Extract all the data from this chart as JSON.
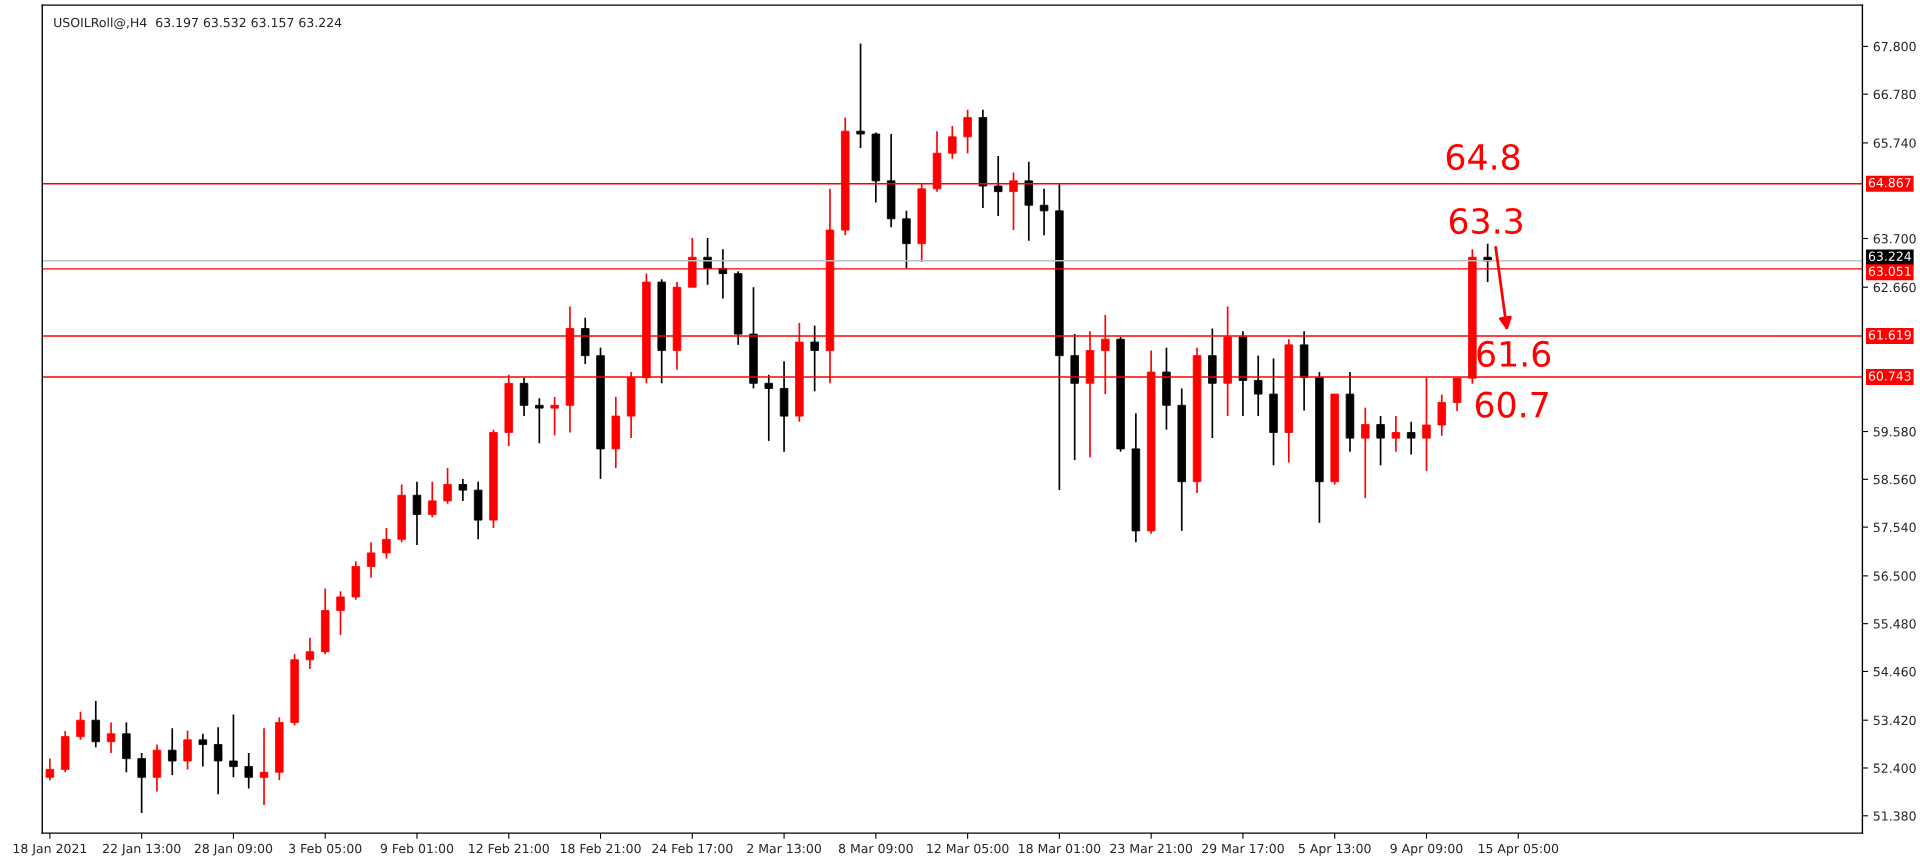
{
  "chart_data": {
    "type": "candlestick",
    "title": "USOILRoll@,H4  63.197 63.532 63.157 63.224",
    "categories": [
      "18 Jan 2021",
      null,
      null,
      null,
      null,
      null,
      "22 Jan 13:00",
      null,
      null,
      null,
      null,
      null,
      "28 Jan 09:00",
      null,
      null,
      null,
      null,
      null,
      "3 Feb 05:00",
      null,
      null,
      null,
      null,
      null,
      "9 Feb 01:00",
      null,
      null,
      null,
      null,
      null,
      "12 Feb 21:00",
      null,
      null,
      null,
      null,
      null,
      "18 Feb 21:00",
      null,
      null,
      null,
      null,
      null,
      "24 Feb 17:00",
      null,
      null,
      null,
      null,
      null,
      "2 Mar 13:00",
      null,
      null,
      null,
      null,
      null,
      "8 Mar 09:00",
      null,
      null,
      null,
      null,
      null,
      "12 Mar 05:00",
      null,
      null,
      null,
      null,
      null,
      "18 Mar 01:00",
      null,
      null,
      null,
      null,
      null,
      "23 Mar 21:00",
      null,
      null,
      null,
      null,
      null,
      "29 Mar 17:00",
      null,
      null,
      null,
      null,
      null,
      "5 Apr 13:00",
      null,
      null,
      null,
      null,
      null,
      "9 Apr 09:00",
      null,
      null,
      null,
      null,
      null,
      "15 Apr 05:00",
      null,
      null,
      null,
      null,
      null,
      null,
      null,
      null,
      null,
      null,
      null,
      null,
      null,
      null,
      null,
      null,
      null,
      null,
      null,
      null,
      null,
      null
    ],
    "ohlc": [
      [
        52.2,
        52.6,
        52.14,
        52.37
      ],
      [
        52.37,
        53.19,
        52.31,
        53.07
      ],
      [
        53.07,
        53.6,
        53.0,
        53.42
      ],
      [
        53.42,
        53.83,
        52.84,
        52.96
      ],
      [
        52.96,
        53.37,
        52.72,
        53.13
      ],
      [
        53.13,
        53.37,
        52.31,
        52.6
      ],
      [
        52.6,
        52.72,
        51.44,
        52.2
      ],
      [
        52.2,
        52.9,
        51.9,
        52.78
      ],
      [
        52.78,
        53.25,
        52.25,
        52.55
      ],
      [
        52.55,
        53.2,
        52.37,
        53.0
      ],
      [
        53.0,
        53.13,
        52.43,
        52.9
      ],
      [
        52.9,
        53.27,
        51.84,
        52.55
      ],
      [
        52.55,
        53.54,
        52.2,
        52.43
      ],
      [
        52.43,
        52.72,
        51.96,
        52.2
      ],
      [
        52.2,
        53.25,
        51.61,
        52.31
      ],
      [
        52.31,
        53.48,
        52.14,
        53.37
      ],
      [
        53.37,
        54.83,
        53.31,
        54.71
      ],
      [
        54.71,
        55.18,
        54.51,
        54.88
      ],
      [
        54.88,
        56.23,
        54.83,
        55.76
      ],
      [
        55.76,
        56.17,
        55.24,
        56.05
      ],
      [
        56.05,
        56.81,
        55.99,
        56.7
      ],
      [
        56.7,
        57.22,
        56.46,
        56.99
      ],
      [
        56.99,
        57.52,
        56.87,
        57.28
      ],
      [
        57.28,
        58.45,
        57.22,
        58.22
      ],
      [
        58.22,
        58.51,
        57.16,
        57.81
      ],
      [
        57.81,
        58.51,
        57.75,
        58.1
      ],
      [
        58.1,
        58.8,
        58.04,
        58.45
      ],
      [
        58.45,
        58.57,
        58.1,
        58.33
      ],
      [
        58.33,
        58.51,
        57.28,
        57.69
      ],
      [
        57.69,
        59.62,
        57.52,
        59.56
      ],
      [
        59.56,
        60.79,
        59.27,
        60.61
      ],
      [
        60.61,
        60.73,
        59.91,
        60.14
      ],
      [
        60.14,
        60.29,
        59.33,
        60.08
      ],
      [
        60.08,
        60.32,
        59.5,
        60.14
      ],
      [
        60.14,
        62.25,
        59.56,
        61.78
      ],
      [
        61.78,
        62.01,
        61.02,
        61.2
      ],
      [
        61.2,
        61.37,
        58.57,
        59.21
      ],
      [
        59.21,
        60.32,
        58.8,
        59.91
      ],
      [
        59.91,
        60.85,
        59.44,
        60.73
      ],
      [
        60.73,
        62.95,
        60.61,
        62.77
      ],
      [
        62.77,
        62.83,
        60.61,
        61.31
      ],
      [
        61.31,
        62.77,
        60.9,
        62.66
      ],
      [
        62.66,
        63.71,
        62.66,
        63.3
      ],
      [
        63.3,
        63.71,
        62.71,
        63.06
      ],
      [
        63.06,
        63.47,
        62.42,
        62.95
      ],
      [
        62.95,
        63.0,
        61.43,
        61.66
      ],
      [
        61.66,
        62.66,
        60.5,
        60.61
      ],
      [
        60.61,
        60.79,
        59.38,
        60.5
      ],
      [
        60.5,
        61.08,
        59.15,
        59.91
      ],
      [
        59.91,
        61.9,
        59.79,
        61.49
      ],
      [
        61.49,
        61.84,
        60.44,
        61.31
      ],
      [
        61.31,
        64.76,
        60.61,
        63.88
      ],
      [
        63.88,
        66.28,
        63.77,
        65.99
      ],
      [
        65.99,
        67.86,
        65.63,
        65.93
      ],
      [
        65.93,
        65.96,
        64.47,
        64.93
      ],
      [
        64.93,
        65.93,
        63.94,
        64.12
      ],
      [
        64.12,
        64.29,
        63.06,
        63.59
      ],
      [
        63.59,
        64.88,
        63.2,
        64.76
      ],
      [
        64.76,
        65.99,
        64.7,
        65.52
      ],
      [
        65.52,
        66.1,
        65.4,
        65.87
      ],
      [
        65.87,
        66.45,
        65.52,
        66.28
      ],
      [
        66.28,
        66.45,
        64.35,
        64.82
      ],
      [
        64.82,
        65.46,
        64.18,
        64.7
      ],
      [
        64.7,
        65.11,
        63.88,
        64.93
      ],
      [
        64.93,
        65.34,
        63.65,
        64.41
      ],
      [
        64.41,
        64.76,
        63.77,
        64.29
      ],
      [
        64.29,
        64.88,
        58.33,
        61.2
      ],
      [
        61.2,
        61.66,
        58.97,
        60.61
      ],
      [
        60.61,
        61.72,
        59.03,
        61.31
      ],
      [
        61.31,
        62.07,
        60.38,
        61.55
      ],
      [
        61.55,
        61.6,
        59.15,
        59.21
      ],
      [
        59.21,
        59.97,
        57.22,
        57.46
      ],
      [
        57.46,
        61.31,
        57.4,
        60.85
      ],
      [
        60.85,
        61.37,
        59.62,
        60.14
      ],
      [
        60.14,
        60.5,
        57.46,
        58.51
      ],
      [
        58.51,
        61.37,
        58.27,
        61.2
      ],
      [
        61.2,
        61.78,
        59.44,
        60.61
      ],
      [
        60.61,
        62.25,
        59.91,
        61.6
      ],
      [
        61.6,
        61.72,
        59.91,
        60.67
      ],
      [
        60.67,
        61.2,
        59.91,
        60.38
      ],
      [
        60.38,
        61.14,
        58.86,
        59.56
      ],
      [
        59.56,
        61.55,
        58.92,
        61.43
      ],
      [
        61.43,
        61.72,
        60.03,
        60.73
      ],
      [
        60.73,
        60.85,
        57.63,
        58.51
      ],
      [
        58.51,
        60.38,
        58.45,
        60.38
      ],
      [
        60.38,
        60.85,
        59.15,
        59.44
      ],
      [
        59.44,
        60.09,
        58.16,
        59.73
      ],
      [
        59.73,
        59.91,
        58.86,
        59.44
      ],
      [
        59.44,
        59.91,
        59.15,
        59.56
      ],
      [
        59.56,
        59.79,
        59.09,
        59.44
      ],
      [
        59.44,
        60.73,
        58.74,
        59.72
      ],
      [
        59.72,
        60.37,
        59.49,
        60.2
      ],
      [
        60.2,
        60.72,
        60.02,
        60.72
      ],
      [
        60.72,
        63.47,
        60.6,
        63.3
      ],
      [
        63.3,
        63.59,
        62.77,
        63.22
      ],
      null,
      null,
      null,
      null,
      null,
      null,
      null,
      null,
      null,
      null,
      null,
      null,
      null,
      null,
      null,
      null,
      null,
      null,
      null,
      null,
      null,
      null,
      null,
      null
    ],
    "colors": [
      "#ff0000",
      "#ff0000",
      "#ff0000",
      "#000000",
      "#ff0000",
      "#000000",
      "#000000",
      "#ff0000",
      "#000000",
      "#ff0000",
      "#000000",
      "#000000",
      "#000000",
      "#000000",
      "#ff0000",
      "#ff0000",
      "#ff0000",
      "#ff0000",
      "#ff0000",
      "#ff0000",
      "#ff0000",
      "#ff0000",
      "#ff0000",
      "#ff0000",
      "#000000",
      "#ff0000",
      "#ff0000",
      "#000000",
      "#000000",
      "#ff0000",
      "#ff0000",
      "#000000",
      "#000000",
      "#ff0000",
      "#ff0000",
      "#000000",
      "#000000",
      "#ff0000",
      "#ff0000",
      "#ff0000",
      "#000000",
      "#ff0000",
      "#ff0000",
      "#000000",
      "#000000",
      "#000000",
      "#000000",
      "#000000",
      "#000000",
      "#ff0000",
      "#000000",
      "#ff0000",
      "#ff0000",
      "#000000",
      "#000000",
      "#000000",
      "#000000",
      "#ff0000",
      "#ff0000",
      "#ff0000",
      "#ff0000",
      "#000000",
      "#000000",
      "#ff0000",
      "#000000",
      "#000000",
      "#000000",
      "#000000",
      "#ff0000",
      "#ff0000",
      "#000000",
      "#000000",
      "#ff0000",
      "#000000",
      "#000000",
      "#ff0000",
      "#000000",
      "#ff0000",
      "#000000",
      "#000000",
      "#000000",
      "#ff0000",
      "#000000",
      "#000000",
      "#ff0000",
      "#000000",
      "#ff0000",
      "#000000",
      "#ff0000",
      "#000000",
      "#ff0000",
      "#ff0000",
      "#ff0000",
      "#ff0000",
      "#000000",
      null,
      null,
      null,
      null,
      null,
      null,
      null,
      null,
      null,
      null,
      null,
      null,
      null,
      null,
      null,
      null,
      null,
      null,
      null,
      null,
      null,
      null,
      null,
      null
    ],
    "ylim": [
      51.01,
      68.68
    ],
    "yticks": [
      {
        "value": 51.38,
        "label": "51.380"
      },
      {
        "value": 52.4,
        "label": "52.400"
      },
      {
        "value": 53.42,
        "label": "53.420"
      },
      {
        "value": 54.46,
        "label": "54.460"
      },
      {
        "value": 55.48,
        "label": "55.480"
      },
      {
        "value": 56.5,
        "label": "56.500"
      },
      {
        "value": 57.54,
        "label": "57.540"
      },
      {
        "value": 58.56,
        "label": "58.560"
      },
      {
        "value": 59.58,
        "label": "59.580"
      },
      {
        "value": 62.66,
        "label": "62.660"
      },
      {
        "value": 63.7,
        "label": "63.700"
      },
      {
        "value": 65.74,
        "label": "65.740"
      },
      {
        "value": 66.78,
        "label": "66.780"
      },
      {
        "value": 67.8,
        "label": "67.800"
      }
    ],
    "ref_lines": [
      {
        "axis": "y",
        "value": 63.224,
        "label": "63.224",
        "color": "#c0c0c0"
      },
      {
        "axis": "y",
        "value": 64.867,
        "label": "64.867",
        "color": "#ff0000"
      },
      {
        "axis": "y",
        "value": 63.051,
        "label": "63.051",
        "color": "#ff0000"
      },
      {
        "axis": "y",
        "value": 61.619,
        "label": "61.619",
        "color": "#ff0000"
      },
      {
        "axis": "y",
        "value": 60.743,
        "label": "60.743",
        "color": "#ff0000"
      }
    ],
    "annotations": [
      {
        "text": "64.8",
        "y": 64.867
      },
      {
        "text": "63.3",
        "y": 63.59
      },
      {
        "text": "61.6",
        "y": 61.619
      },
      {
        "text": "60.7",
        "y": 60.743
      }
    ],
    "grid": false,
    "legend": false
  }
}
